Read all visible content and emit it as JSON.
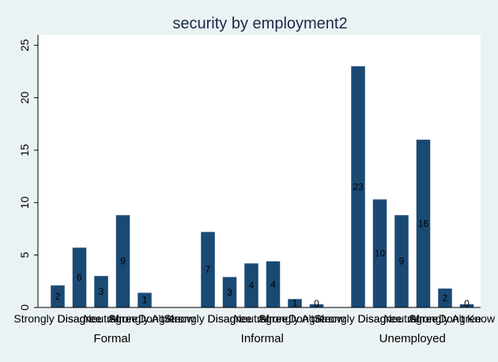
{
  "chart_data": {
    "type": "bar",
    "title": "security by employment2",
    "ylim": [
      0,
      26
    ],
    "yticks": [
      0,
      5,
      10,
      15,
      20,
      25
    ],
    "grid": false,
    "bar_color": "#1a4a74",
    "background_color": "#eaf2f3",
    "plot_background_color": "#ffffff",
    "categories": [
      "Strongly Disagree",
      "Disagree",
      "Neutral",
      "Agree",
      "Strongly Agree",
      "Don't Know"
    ],
    "groups": [
      {
        "name": "Formal",
        "values": [
          2.1,
          5.7,
          3.0,
          8.8,
          1.4,
          0
        ],
        "labels": [
          "2",
          "6",
          "3",
          "9",
          "1",
          ""
        ]
      },
      {
        "name": "Informal",
        "values": [
          7.2,
          2.9,
          4.2,
          4.4,
          0.8,
          0.3
        ],
        "labels": [
          "7",
          "3",
          "4",
          "4",
          "1",
          "0"
        ]
      },
      {
        "name": "Unemployed",
        "values": [
          23.0,
          10.3,
          8.8,
          16.0,
          1.8,
          0.3
        ],
        "labels": [
          "23",
          "10",
          "9",
          "16",
          "2",
          "0"
        ]
      }
    ]
  }
}
